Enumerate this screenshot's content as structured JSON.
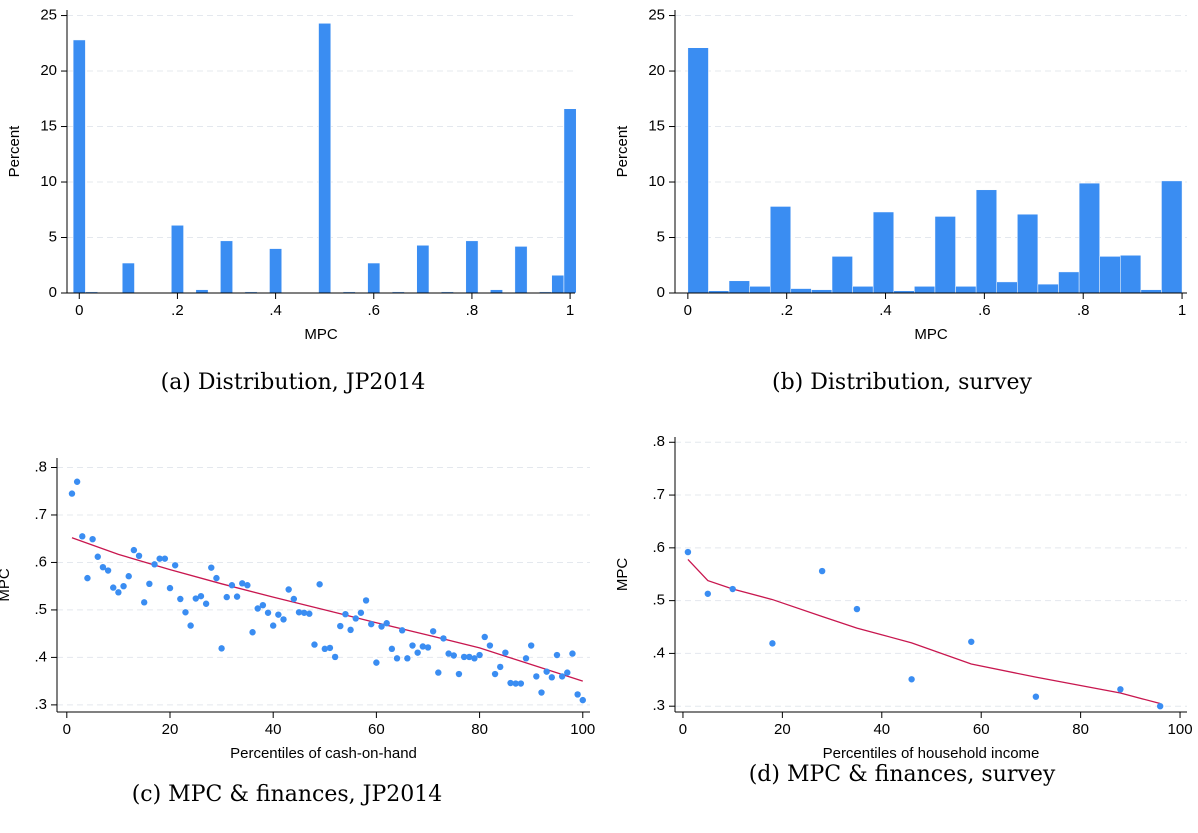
{
  "chart_data": [
    {
      "type": "histogram",
      "caption": "(a) Distribution, JP2014",
      "xlabel": "MPC",
      "ylabel": "Percent",
      "color": "#3a8df2",
      "bins": [
        -0.0125,
        0.0125,
        0.0375,
        0.0625,
        0.0875,
        0.1125,
        0.1375,
        0.1625,
        0.1875,
        0.2125,
        0.2375,
        0.2625,
        0.2875,
        0.3125,
        0.3375,
        0.3625,
        0.3875,
        0.4125,
        0.4375,
        0.4625,
        0.4875,
        0.5125,
        0.5375,
        0.5625,
        0.5875,
        0.6125,
        0.6375,
        0.6625,
        0.6875,
        0.7125,
        0.7375,
        0.7625,
        0.7875,
        0.8125,
        0.8375,
        0.8625,
        0.8875,
        0.9125,
        0.9375,
        0.9625,
        0.9875,
        1.0125
      ],
      "values": [
        22.8,
        0.1,
        0,
        0,
        2.7,
        0,
        0,
        0,
        6.1,
        0,
        0.3,
        0,
        4.7,
        0,
        0.1,
        0,
        4.0,
        0,
        0,
        0,
        24.3,
        0,
        0.1,
        0,
        2.7,
        0,
        0.1,
        0,
        4.3,
        0,
        0.1,
        0,
        4.7,
        0,
        0.3,
        0,
        4.2,
        0,
        0.1,
        1.6,
        16.6
      ],
      "xlim": [
        -0.025,
        1.01
      ],
      "ylim": [
        0,
        25.5
      ],
      "xticks": [
        0,
        {
          "value": 0.2,
          "label": ".2"
        },
        {
          "value": 0.4,
          "label": ".4"
        },
        {
          "value": 0.6,
          "label": ".6"
        },
        {
          "value": 0.8,
          "label": ".8"
        },
        1
      ],
      "yticks": [
        0,
        5,
        10,
        15,
        20,
        25
      ],
      "grid": true
    },
    {
      "type": "histogram",
      "caption": "(b) Distribution, survey",
      "xlabel": "MPC",
      "ylabel": "Percent",
      "color": "#3a8df2",
      "bins": [
        0,
        0.0417,
        0.0833,
        0.125,
        0.1667,
        0.2083,
        0.25,
        0.2917,
        0.3333,
        0.375,
        0.4167,
        0.4583,
        0.5,
        0.5417,
        0.5833,
        0.625,
        0.6667,
        0.7083,
        0.75,
        0.7917,
        0.8333,
        0.875,
        0.9167,
        0.9583,
        1
      ],
      "values": [
        22.1,
        0.2,
        1.1,
        0.6,
        7.8,
        0.4,
        0.3,
        3.3,
        0.6,
        7.3,
        0.2,
        0.6,
        6.9,
        0.6,
        9.3,
        1.0,
        7.1,
        0.8,
        1.9,
        9.9,
        3.3,
        3.4,
        0.3,
        10.1
      ],
      "xlim": [
        -0.026,
        1.01
      ],
      "ylim": [
        0,
        25.5
      ],
      "xticks": [
        0,
        {
          "value": 0.2,
          "label": ".2"
        },
        {
          "value": 0.4,
          "label": ".4"
        },
        {
          "value": 0.6,
          "label": ".6"
        },
        {
          "value": 0.8,
          "label": ".8"
        },
        1
      ],
      "yticks": [
        0,
        5,
        10,
        15,
        20,
        25
      ],
      "grid": true
    },
    {
      "type": "scatter",
      "caption": "(c) MPC & finances, JP2014",
      "xlabel": "Percentiles of cash-on-hand",
      "ylabel": "MPC",
      "color": "#3a8df2",
      "x": [
        1,
        2,
        3,
        4,
        5,
        6,
        7,
        8,
        9,
        10,
        11,
        12,
        13,
        14,
        15,
        16,
        17,
        18,
        19,
        20,
        21,
        22,
        23,
        24,
        25,
        26,
        27,
        28,
        29,
        30,
        31,
        32,
        33,
        34,
        35,
        36,
        37,
        38,
        39,
        40,
        41,
        42,
        43,
        44,
        45,
        46,
        47,
        48,
        49,
        50,
        51,
        52,
        53,
        54,
        55,
        56,
        57,
        58,
        59,
        60,
        61,
        62,
        63,
        64,
        65,
        66,
        67,
        68,
        69,
        70,
        71,
        72,
        73,
        74,
        75,
        76,
        77,
        78,
        79,
        80,
        81,
        82,
        83,
        84,
        85,
        86,
        87,
        88,
        89,
        90,
        91,
        92,
        93,
        94,
        95,
        96,
        97,
        98,
        99,
        100
      ],
      "values": [
        0.745,
        0.77,
        0.655,
        0.567,
        0.649,
        0.612,
        0.59,
        0.583,
        0.547,
        0.537,
        0.55,
        0.571,
        0.626,
        0.614,
        0.516,
        0.555,
        0.596,
        0.608,
        0.608,
        0.546,
        0.594,
        0.523,
        0.495,
        0.467,
        0.524,
        0.529,
        0.513,
        0.589,
        0.567,
        0.419,
        0.527,
        0.552,
        0.528,
        0.556,
        0.552,
        0.453,
        0.503,
        0.51,
        0.494,
        0.467,
        0.49,
        0.48,
        0.543,
        0.523,
        0.495,
        0.494,
        0.492,
        0.427,
        0.554,
        0.418,
        0.42,
        0.401,
        0.466,
        0.491,
        0.458,
        0.482,
        0.494,
        0.52,
        0.47,
        0.389,
        0.465,
        0.472,
        0.418,
        0.398,
        0.457,
        0.398,
        0.425,
        0.41,
        0.423,
        0.421,
        0.455,
        0.368,
        0.44,
        0.408,
        0.404,
        0.365,
        0.401,
        0.401,
        0.398,
        0.405,
        0.443,
        0.425,
        0.365,
        0.38,
        0.41,
        0.346,
        0.345,
        0.345,
        0.398,
        0.425,
        0.36,
        0.326,
        0.37,
        0.358,
        0.405,
        0.36,
        0.368,
        0.408,
        0.322,
        0.31
      ],
      "fit": {
        "color": "#c8174f",
        "x": [
          1,
          10,
          20,
          30,
          40,
          50,
          60,
          70,
          80,
          90,
          100
        ],
        "values": [
          0.652,
          0.617,
          0.585,
          0.555,
          0.527,
          0.5,
          0.473,
          0.447,
          0.42,
          0.385,
          0.35
        ]
      },
      "xlim": [
        -1.9,
        101.4
      ],
      "ylim": [
        0.285,
        0.82
      ],
      "xticks": [
        0,
        20,
        40,
        60,
        80,
        100
      ],
      "yticks": [
        {
          "value": 0.3,
          "label": ".3"
        },
        {
          "value": 0.4,
          "label": ".4"
        },
        {
          "value": 0.5,
          "label": ".5"
        },
        {
          "value": 0.6,
          "label": ".6"
        },
        {
          "value": 0.7,
          "label": ".7"
        },
        {
          "value": 0.8,
          "label": ".8"
        }
      ],
      "grid": true
    },
    {
      "type": "scatter",
      "caption": "(d) MPC & finances, survey",
      "xlabel": "Percentiles of household income",
      "ylabel": "MPC",
      "color": "#3a8df2",
      "x": [
        1,
        5,
        10,
        18,
        28,
        35,
        46,
        58,
        71,
        88,
        96
      ],
      "values": [
        0.592,
        0.513,
        0.522,
        0.419,
        0.556,
        0.484,
        0.351,
        0.422,
        0.318,
        0.332,
        0.3
      ],
      "fit": {
        "color": "#c8174f",
        "x": [
          1,
          5,
          10,
          18,
          28,
          35,
          46,
          58,
          71,
          88,
          96
        ],
        "values": [
          0.578,
          0.538,
          0.522,
          0.502,
          0.47,
          0.448,
          0.42,
          0.38,
          0.355,
          0.325,
          0.305
        ]
      },
      "xlim": [
        -1.6,
        101.4
      ],
      "ylim": [
        0.289,
        0.81
      ],
      "xticks": [
        0,
        20,
        40,
        60,
        80,
        100
      ],
      "yticks": [
        {
          "value": 0.3,
          "label": ".3"
        },
        {
          "value": 0.4,
          "label": ".4"
        },
        {
          "value": 0.5,
          "label": ".5"
        },
        {
          "value": 0.6,
          "label": ".6"
        },
        {
          "value": 0.7,
          "label": ".7"
        },
        {
          "value": 0.8,
          "label": ".8"
        }
      ],
      "grid": true
    }
  ]
}
